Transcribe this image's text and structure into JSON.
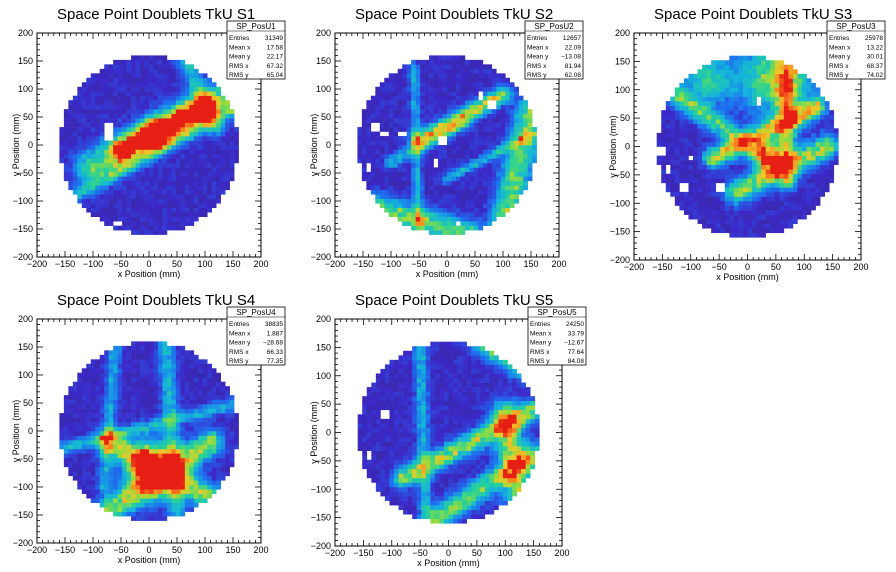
{
  "chart_data": [
    {
      "type": "heatmap",
      "title": "Space Point Doublets TkU S1",
      "xlabel": "x Position (mm)",
      "ylabel": "y Position (mm)",
      "xlim": [
        -200,
        200
      ],
      "ylim": [
        -200,
        200
      ],
      "x_ticks": [
        "−200",
        "−150",
        "−100",
        "−50",
        "0",
        "50",
        "100",
        "150",
        "200"
      ],
      "y_ticks": [
        "200",
        "150",
        "100",
        "50",
        "0",
        "−50",
        "−100",
        "−150",
        "−200"
      ],
      "stats": {
        "name": "SP_PosU1",
        "rows": [
          {
            "label": "Entries",
            "value": "31349"
          },
          {
            "label": "Mean x",
            "value": "17.58"
          },
          {
            "label": "Mean y",
            "value": "22.17"
          },
          {
            "label": "RMS x",
            "value": "67.32"
          },
          {
            "label": "RMS y",
            "value": "65.04"
          }
        ]
      },
      "radius": 160,
      "features": [
        {
          "kind": "band",
          "x1": -100,
          "y1": -40,
          "x2": 160,
          "y2": 100,
          "width": 22,
          "level": 0.45
        },
        {
          "kind": "band",
          "x1": -50,
          "y1": -10,
          "x2": 100,
          "y2": 70,
          "width": 14,
          "level": 0.75
        },
        {
          "kind": "band",
          "x1": -150,
          "y1": -100,
          "x2": 160,
          "y2": 70,
          "width": 8,
          "level": 0.28
        },
        {
          "kind": "band",
          "x1": 60,
          "y1": 160,
          "x2": 120,
          "y2": 30,
          "width": 10,
          "level": 0.32
        },
        {
          "kind": "spot",
          "x": 10,
          "y": 20,
          "r": 16,
          "level": 0.95
        }
      ],
      "holes": [
        [
          -70,
          35
        ],
        [
          -70,
          15
        ],
        [
          -55,
          -140
        ]
      ],
      "seed": 11
    },
    {
      "type": "heatmap",
      "title": "Space Point Doublets TkU S2",
      "xlabel": "x Position (mm)",
      "ylabel": "y Position (mm)",
      "xlim": [
        -200,
        200
      ],
      "ylim": [
        -200,
        200
      ],
      "x_ticks": [
        "−200",
        "−150",
        "−100",
        "−50",
        "0",
        "50",
        "100",
        "150",
        "200"
      ],
      "y_ticks": [
        "200",
        "150",
        "100",
        "50",
        "0",
        "−50",
        "−100",
        "−150",
        "−200"
      ],
      "stats": {
        "name": "SP_PosU2",
        "rows": [
          {
            "label": "Entries",
            "value": "12657"
          },
          {
            "label": "Mean x",
            "value": "22.09"
          },
          {
            "label": "Mean y",
            "value": "−13.08"
          },
          {
            "label": "RMS x",
            "value": "81.94"
          },
          {
            "label": "RMS y",
            "value": "62.08"
          }
        ]
      },
      "radius": 160,
      "features": [
        {
          "kind": "band",
          "x1": -50,
          "y1": 10,
          "x2": 100,
          "y2": 90,
          "width": 10,
          "level": 0.6
        },
        {
          "kind": "band",
          "x1": -130,
          "y1": -110,
          "x2": 40,
          "y2": -160,
          "width": 16,
          "level": 0.5
        },
        {
          "kind": "band",
          "x1": 100,
          "y1": -150,
          "x2": 150,
          "y2": 60,
          "width": 18,
          "level": 0.5
        },
        {
          "kind": "band",
          "x1": -100,
          "y1": -30,
          "x2": 30,
          "y2": 40,
          "width": 8,
          "level": 0.32
        },
        {
          "kind": "band",
          "x1": -60,
          "y1": 140,
          "x2": -50,
          "y2": -150,
          "width": 6,
          "level": 0.28
        },
        {
          "kind": "band",
          "x1": 0,
          "y1": -60,
          "x2": 150,
          "y2": 20,
          "width": 6,
          "level": 0.3
        }
      ],
      "holes": [
        [
          -130,
          30
        ],
        [
          -110,
          20
        ],
        [
          -80,
          20
        ],
        [
          -140,
          -40
        ],
        [
          -20,
          -30
        ],
        [
          60,
          90
        ],
        [
          80,
          70
        ],
        [
          20,
          -140
        ],
        [
          -10,
          10
        ]
      ],
      "seed": 23
    },
    {
      "type": "heatmap",
      "title": "Space Point Doublets TkU S3",
      "xlabel": "x Position (mm)",
      "ylabel": "y Position (mm)",
      "xlim": [
        -200,
        200
      ],
      "ylim": [
        -200,
        200
      ],
      "x_ticks": [
        "−200",
        "−150",
        "−100",
        "−50",
        "0",
        "50",
        "100",
        "150",
        "200"
      ],
      "y_ticks": [
        "200",
        "150",
        "100",
        "50",
        "0",
        "−50",
        "−100",
        "−150",
        "−200"
      ],
      "stats": {
        "name": "SP_PosU3",
        "rows": [
          {
            "label": "Entries",
            "value": "25978"
          },
          {
            "label": "Mean x",
            "value": "13.22"
          },
          {
            "label": "Mean y",
            "value": "30.01"
          },
          {
            "label": "RMS x",
            "value": "68.37"
          },
          {
            "label": "RMS y",
            "value": "74.02"
          }
        ]
      },
      "radius": 160,
      "features": [
        {
          "kind": "band",
          "x1": -60,
          "y1": -20,
          "x2": 120,
          "y2": 70,
          "width": 12,
          "level": 0.6
        },
        {
          "kind": "band",
          "x1": -20,
          "y1": -80,
          "x2": 140,
          "y2": 0,
          "width": 14,
          "level": 0.55
        },
        {
          "kind": "band",
          "x1": -140,
          "y1": 100,
          "x2": 20,
          "y2": -10,
          "width": 12,
          "level": 0.45
        },
        {
          "kind": "band",
          "x1": 70,
          "y1": 160,
          "x2": 70,
          "y2": -60,
          "width": 12,
          "level": 0.45
        },
        {
          "kind": "spot",
          "x": 50,
          "y": 120,
          "r": 45,
          "level": 0.55
        },
        {
          "kind": "spot",
          "x": -70,
          "y": 120,
          "r": 30,
          "level": 0.4
        },
        {
          "kind": "spot",
          "x": 40,
          "y": -20,
          "r": 18,
          "level": 0.8
        }
      ],
      "holes": [
        [
          -140,
          -40
        ],
        [
          -150,
          -10
        ],
        [
          -100,
          -20
        ],
        [
          -110,
          -70
        ],
        [
          -50,
          -70
        ],
        [
          20,
          80
        ],
        [
          -160,
          30
        ]
      ],
      "seed": 37
    },
    {
      "type": "heatmap",
      "title": "Space Point Doublets TkU S4",
      "xlabel": "x Position (mm)",
      "ylabel": "y Position (mm)",
      "xlim": [
        -200,
        200
      ],
      "ylim": [
        -200,
        200
      ],
      "x_ticks": [
        "−200",
        "−150",
        "−100",
        "−50",
        "0",
        "50",
        "100",
        "150",
        "200"
      ],
      "y_ticks": [
        "200",
        "150",
        "100",
        "50",
        "0",
        "−50",
        "−100",
        "−150",
        "−200"
      ],
      "stats": {
        "name": "SP_PosU4",
        "rows": [
          {
            "label": "Entries",
            "value": "38835"
          },
          {
            "label": "Mean x",
            "value": "1.887"
          },
          {
            "label": "Mean y",
            "value": "−28.68"
          },
          {
            "label": "RMS x",
            "value": "66.33"
          },
          {
            "label": "RMS y",
            "value": "77.35"
          }
        ]
      },
      "radius": 160,
      "features": [
        {
          "kind": "band",
          "x1": -70,
          "y1": -20,
          "x2": 110,
          "y2": -120,
          "width": 16,
          "level": 0.55
        },
        {
          "kind": "band",
          "x1": -70,
          "y1": -140,
          "x2": 110,
          "y2": -20,
          "width": 16,
          "level": 0.55
        },
        {
          "kind": "spot",
          "x": 10,
          "y": -70,
          "r": 30,
          "level": 0.95
        },
        {
          "kind": "band",
          "x1": 30,
          "y1": 160,
          "x2": 50,
          "y2": -160,
          "width": 10,
          "level": 0.3
        },
        {
          "kind": "band",
          "x1": -150,
          "y1": -30,
          "x2": 160,
          "y2": 50,
          "width": 8,
          "level": 0.28
        },
        {
          "kind": "band",
          "x1": -60,
          "y1": 160,
          "x2": -80,
          "y2": -100,
          "width": 8,
          "level": 0.26
        }
      ],
      "holes": [],
      "seed": 41
    },
    {
      "type": "heatmap",
      "title": "Space Point Doublets TkU S5",
      "xlabel": "x Position (mm)",
      "ylabel": "y Position (mm)",
      "xlim": [
        -200,
        200
      ],
      "ylim": [
        -200,
        200
      ],
      "x_ticks": [
        "−200",
        "−150",
        "−100",
        "−50",
        "0",
        "50",
        "100",
        "150",
        "200"
      ],
      "y_ticks": [
        "200",
        "150",
        "100",
        "50",
        "0",
        "−50",
        "−100",
        "−150",
        "−200"
      ],
      "stats": {
        "name": "SP_PosU5",
        "rows": [
          {
            "label": "Entries",
            "value": "24250"
          },
          {
            "label": "Mean x",
            "value": "33.79"
          },
          {
            "label": "Mean y",
            "value": "−12.67"
          },
          {
            "label": "RMS x",
            "value": "77.64"
          },
          {
            "label": "RMS y",
            "value": "84.08"
          }
        ]
      },
      "radius": 160,
      "features": [
        {
          "kind": "band",
          "x1": -80,
          "y1": -80,
          "x2": 150,
          "y2": 40,
          "width": 12,
          "level": 0.55
        },
        {
          "kind": "band",
          "x1": -20,
          "y1": -150,
          "x2": 150,
          "y2": -40,
          "width": 14,
          "level": 0.5
        },
        {
          "kind": "band",
          "x1": 100,
          "y1": 30,
          "x2": 130,
          "y2": -130,
          "width": 18,
          "level": 0.55
        },
        {
          "kind": "band",
          "x1": 60,
          "y1": 160,
          "x2": 140,
          "y2": 110,
          "width": 14,
          "level": 0.55
        },
        {
          "kind": "band",
          "x1": -50,
          "y1": 160,
          "x2": -40,
          "y2": -160,
          "width": 8,
          "level": 0.28
        }
      ],
      "holes": [
        [
          -110,
          30
        ],
        [
          -140,
          -40
        ]
      ],
      "seed": 53
    }
  ]
}
